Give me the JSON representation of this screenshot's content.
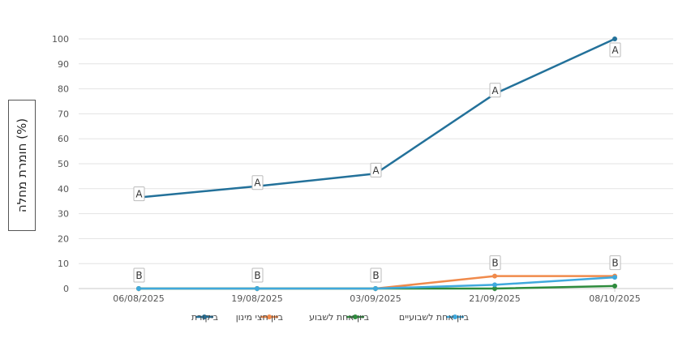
{
  "chart_data": {
    "type": "line",
    "title": "",
    "xlabel": "",
    "ylabel": "חומרת מחלה (%)",
    "ylim": [
      0,
      100
    ],
    "yticks": [
      0,
      10,
      20,
      30,
      40,
      50,
      60,
      70,
      80,
      90,
      100
    ],
    "x": [
      "06/08/2025",
      "19/08/2025",
      "03/09/2025",
      "21/09/2025",
      "08/10/2025"
    ],
    "x_tick_labels": [
      "06/08/2025",
      "19/08/2025",
      "03/09/2025",
      "21/09/2025",
      "08/10/2025"
    ],
    "grid": "horizontal",
    "legend_position": "bottom",
    "series": [
      {
        "name": "ביקורת",
        "color": "#23719a",
        "values": [
          36.5,
          41,
          46,
          78,
          100
        ]
      },
      {
        "name": "ביון חצי מינון",
        "color": "#f08a4b",
        "values": [
          0,
          0,
          0,
          5,
          5
        ]
      },
      {
        "name": "ביון אחת לשבוע",
        "color": "#2e8b3d",
        "values": [
          0,
          0,
          0,
          0,
          1
        ]
      },
      {
        "name": "ביון אחת לשבועיים",
        "color": "#3fa9dd",
        "values": [
          0,
          0,
          0,
          1.5,
          4.5
        ]
      }
    ],
    "annotations": [
      {
        "x": "06/08/2025",
        "y": 36.5,
        "text": "A"
      },
      {
        "x": "19/08/2025",
        "y": 41,
        "text": "A"
      },
      {
        "x": "03/09/2025",
        "y": 46,
        "text": "A"
      },
      {
        "x": "21/09/2025",
        "y": 78,
        "text": "A"
      },
      {
        "x": "08/10/2025",
        "y": 100,
        "text": "A"
      },
      {
        "x": "06/08/2025",
        "y": 0,
        "text": "B"
      },
      {
        "x": "19/08/2025",
        "y": 0,
        "text": "B"
      },
      {
        "x": "03/09/2025",
        "y": 0,
        "text": "B"
      },
      {
        "x": "21/09/2025",
        "y": 5,
        "text": "B"
      },
      {
        "x": "08/10/2025",
        "y": 5,
        "text": "B"
      }
    ]
  }
}
